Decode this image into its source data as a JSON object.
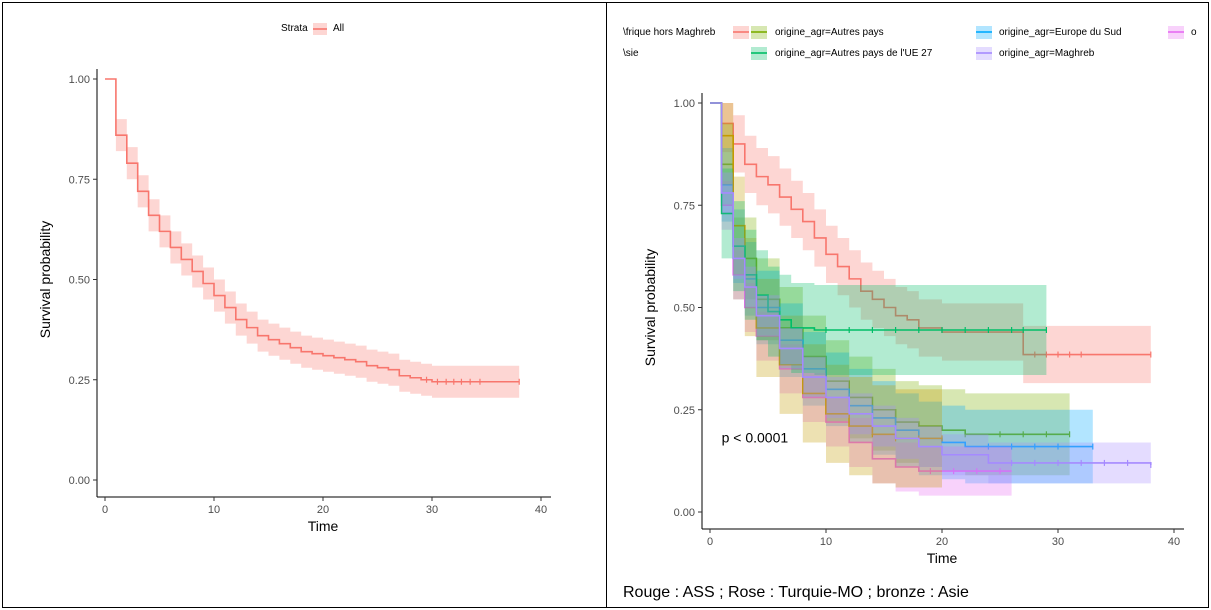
{
  "chart_data": [
    {
      "type": "line",
      "title": "",
      "xlabel": "Time",
      "ylabel": "Survival probability",
      "xlim": [
        0,
        40
      ],
      "ylim": [
        0,
        1
      ],
      "x_ticks": [
        "0",
        "10",
        "20",
        "30",
        "40"
      ],
      "y_ticks": [
        "0.00",
        "0.25",
        "0.50",
        "0.75",
        "1.00"
      ],
      "grid": false,
      "step": true,
      "confidence_band": true,
      "legend": {
        "position": "top",
        "title": "Strata",
        "entries": [
          "All"
        ]
      },
      "series": [
        {
          "name": "All",
          "color": "#f8766d",
          "x": [
            0,
            1,
            2,
            3,
            4,
            5,
            6,
            7,
            8,
            9,
            10,
            11,
            12,
            13,
            14,
            15,
            16,
            17,
            18,
            19,
            20,
            21,
            22,
            23,
            24,
            25,
            26,
            27,
            28,
            29,
            30,
            38
          ],
          "y": [
            1.0,
            0.86,
            0.79,
            0.72,
            0.66,
            0.62,
            0.58,
            0.55,
            0.52,
            0.49,
            0.46,
            0.43,
            0.4,
            0.38,
            0.36,
            0.35,
            0.34,
            0.33,
            0.32,
            0.315,
            0.31,
            0.305,
            0.3,
            0.295,
            0.285,
            0.28,
            0.275,
            0.26,
            0.255,
            0.25,
            0.245,
            0.245
          ],
          "ci_halfwidth": 0.04,
          "censor_x": [
            29.5,
            30.5,
            31.3,
            32.0,
            32.7,
            33.5,
            34.4,
            38
          ]
        }
      ]
    },
    {
      "type": "line",
      "title": "",
      "xlabel": "Time",
      "ylabel": "Survival probability",
      "xlim": [
        0,
        40
      ],
      "ylim": [
        0,
        1
      ],
      "x_ticks": [
        "0",
        "10",
        "20",
        "30",
        "40"
      ],
      "y_ticks": [
        "0.00",
        "0.25",
        "0.50",
        "0.75",
        "1.00"
      ],
      "grid": false,
      "step": true,
      "confidence_band": true,
      "annotation": "p < 0.0001",
      "legend": {
        "position": "top",
        "entries": [
          "\\frique hors Maghreb",
          "origine_agr=Autres pays",
          "origine_agr=Europe du Sud",
          "o",
          "\\sie",
          "origine_agr=Autres pays de l'UE 27",
          "origine_agr=Maghreb"
        ]
      },
      "series": [
        {
          "name": "\\frique hors Maghreb",
          "color": "#f8766d",
          "x": [
            0,
            1,
            2,
            3,
            4,
            5,
            6,
            7,
            8,
            9,
            10,
            11,
            12,
            13,
            14,
            15,
            16,
            17,
            18,
            20,
            24,
            27,
            38
          ],
          "y": [
            1.0,
            0.95,
            0.9,
            0.85,
            0.82,
            0.8,
            0.77,
            0.74,
            0.71,
            0.67,
            0.63,
            0.6,
            0.57,
            0.54,
            0.52,
            0.5,
            0.48,
            0.47,
            0.45,
            0.44,
            0.44,
            0.385,
            0.385
          ],
          "ci_halfwidth": 0.07,
          "censor_x": [
            28,
            29,
            30,
            31,
            32,
            38
          ]
        },
        {
          "name": "origine_agr=Autres pays",
          "color": "#7cae00",
          "x": [
            0,
            1,
            2,
            4,
            6,
            8,
            10,
            12,
            14,
            16,
            18,
            20,
            22,
            31
          ],
          "y": [
            1.0,
            0.85,
            0.62,
            0.52,
            0.45,
            0.38,
            0.32,
            0.28,
            0.25,
            0.22,
            0.21,
            0.2,
            0.19,
            0.19
          ],
          "ci_halfwidth": 0.1,
          "censor_x": [
            22,
            25,
            27,
            29,
            31
          ]
        },
        {
          "name": "origine_agr=Europe du Sud",
          "color": "#00a9ff",
          "x": [
            0,
            1,
            2,
            3,
            4,
            6,
            8,
            10,
            12,
            14,
            16,
            18,
            20,
            22,
            33
          ],
          "y": [
            1.0,
            0.8,
            0.65,
            0.57,
            0.5,
            0.42,
            0.35,
            0.3,
            0.26,
            0.23,
            0.2,
            0.18,
            0.17,
            0.16,
            0.16
          ],
          "ci_halfwidth": 0.09,
          "censor_x": [
            24,
            26,
            28,
            30,
            33
          ]
        },
        {
          "name": "o",
          "color": "#e76bf3",
          "x": [
            0,
            1,
            2,
            3,
            4,
            6,
            8,
            10,
            12,
            14,
            16,
            18,
            26
          ],
          "y": [
            1.0,
            0.75,
            0.58,
            0.5,
            0.43,
            0.35,
            0.28,
            0.22,
            0.17,
            0.13,
            0.11,
            0.1,
            0.1
          ],
          "ci_halfwidth": 0.06,
          "censor_x": [
            19,
            21,
            23,
            25
          ]
        },
        {
          "name": "\\sie",
          "color": "#c49a00",
          "x": [
            0,
            1,
            2,
            3,
            4,
            6,
            8,
            10,
            12,
            14,
            16,
            20
          ],
          "y": [
            1.0,
            0.92,
            0.7,
            0.55,
            0.45,
            0.36,
            0.29,
            0.24,
            0.21,
            0.19,
            0.18,
            0.18
          ],
          "ci_halfwidth": 0.12,
          "censor_x": [
            14,
            16,
            18,
            20
          ]
        },
        {
          "name": "origine_agr=Autres pays de l'UE 27",
          "color": "#00be67",
          "x": [
            0,
            1,
            2,
            3,
            4,
            5,
            6,
            7,
            9,
            29
          ],
          "y": [
            1.0,
            0.73,
            0.65,
            0.58,
            0.53,
            0.49,
            0.47,
            0.45,
            0.445,
            0.445
          ],
          "ci_halfwidth": 0.11,
          "censor_x": [
            10,
            12,
            14,
            16,
            18,
            20,
            22,
            24,
            26,
            27,
            29
          ]
        },
        {
          "name": "origine_agr=Maghreb",
          "color": "#a58aff",
          "x": [
            0,
            1,
            2,
            3,
            4,
            6,
            8,
            10,
            12,
            14,
            16,
            18,
            20,
            24,
            38
          ],
          "y": [
            1.0,
            0.78,
            0.62,
            0.55,
            0.48,
            0.4,
            0.33,
            0.28,
            0.24,
            0.21,
            0.18,
            0.16,
            0.14,
            0.12,
            0.115
          ],
          "ci_halfwidth": 0.05,
          "censor_x": [
            26,
            28,
            30,
            32,
            34,
            36,
            38
          ]
        }
      ]
    }
  ],
  "caption": "Rouge : ASS ; Rose : Turquie-MO ; bronze : Asie"
}
